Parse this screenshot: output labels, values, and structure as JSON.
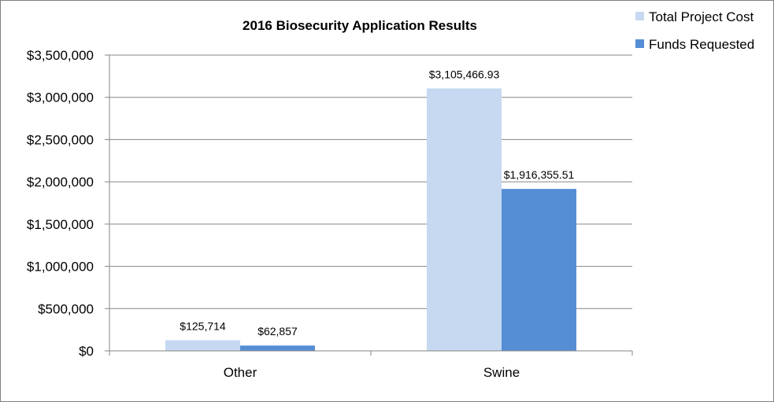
{
  "chart_data": {
    "type": "bar",
    "title": "2016 Biosecurity Application Results",
    "categories": [
      "Other",
      "Swine"
    ],
    "series": [
      {
        "name": "Total Project Cost",
        "color": "#c6d9f1",
        "values": [
          125714,
          3105466.93
        ],
        "labels": [
          "$125,714",
          "$3,105,466.93"
        ]
      },
      {
        "name": "Funds Requested",
        "color": "#558ed5",
        "values": [
          62857,
          1916355.51
        ],
        "labels": [
          "$62,857",
          "$1,916,355.51"
        ]
      }
    ],
    "ylim": [
      0,
      3500000
    ],
    "yticks": [
      0,
      500000,
      1000000,
      1500000,
      2000000,
      2500000,
      3000000,
      3500000
    ],
    "ytick_labels": [
      "$0",
      "$500,000",
      "$1,000,000",
      "$1,500,000",
      "$2,000,000",
      "$2,500,000",
      "$3,000,000",
      "$3,500,000"
    ],
    "grid": true,
    "legend_position": "top-right"
  }
}
